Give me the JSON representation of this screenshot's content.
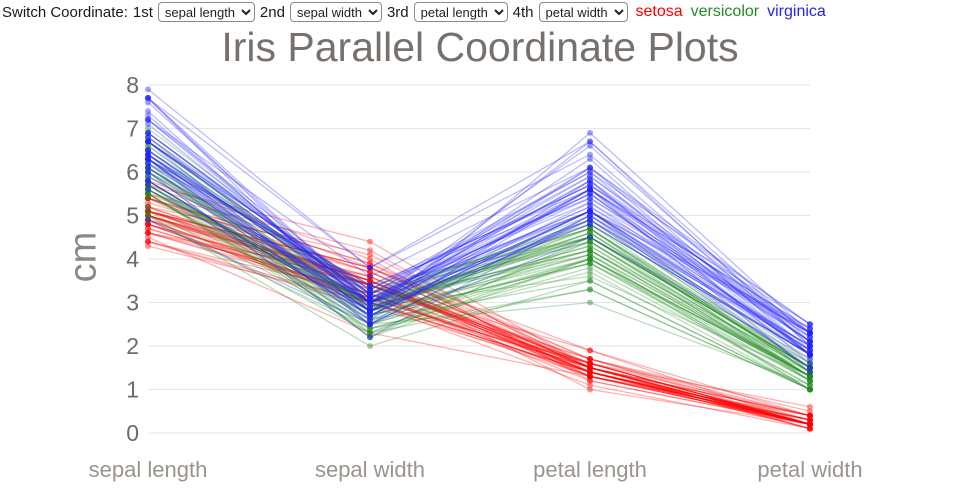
{
  "controls": {
    "label": "Switch Coordinate:",
    "selectors": [
      {
        "label": "1st",
        "value": "sepal length"
      },
      {
        "label": "2nd",
        "value": "sepal width"
      },
      {
        "label": "3rd",
        "value": "petal length"
      },
      {
        "label": "4th",
        "value": "petal width"
      }
    ]
  },
  "chart_data": {
    "type": "parallel-coordinates",
    "title": "Iris Parallel Coordinate Plots",
    "ylabel": "cm",
    "categories": [
      "sepal length",
      "sepal width",
      "petal length",
      "petal width"
    ],
    "yticks": [
      0,
      1,
      2,
      3,
      4,
      5,
      6,
      7,
      8
    ],
    "ylim": [
      0,
      8
    ],
    "grid": true,
    "legend_position": "top-right",
    "line_opacity": 0.3,
    "marker_opacity": 0.42,
    "series": [
      {
        "name": "setosa",
        "color": "#ff0000",
        "rows": [
          [
            5.1,
            3.5,
            1.4,
            0.2
          ],
          [
            4.9,
            3.0,
            1.4,
            0.2
          ],
          [
            4.7,
            3.2,
            1.3,
            0.2
          ],
          [
            4.6,
            3.1,
            1.5,
            0.2
          ],
          [
            5.0,
            3.6,
            1.4,
            0.2
          ],
          [
            5.4,
            3.9,
            1.7,
            0.4
          ],
          [
            4.6,
            3.4,
            1.4,
            0.3
          ],
          [
            5.0,
            3.4,
            1.5,
            0.2
          ],
          [
            4.4,
            2.9,
            1.4,
            0.2
          ],
          [
            4.9,
            3.1,
            1.5,
            0.1
          ],
          [
            5.4,
            3.7,
            1.5,
            0.2
          ],
          [
            4.8,
            3.4,
            1.6,
            0.2
          ],
          [
            4.8,
            3.0,
            1.4,
            0.1
          ],
          [
            4.3,
            3.0,
            1.1,
            0.1
          ],
          [
            5.8,
            4.0,
            1.2,
            0.2
          ],
          [
            5.7,
            4.4,
            1.5,
            0.4
          ],
          [
            5.4,
            3.9,
            1.3,
            0.4
          ],
          [
            5.1,
            3.5,
            1.4,
            0.3
          ],
          [
            5.7,
            3.8,
            1.7,
            0.3
          ],
          [
            5.1,
            3.8,
            1.5,
            0.3
          ],
          [
            5.4,
            3.4,
            1.7,
            0.2
          ],
          [
            5.1,
            3.7,
            1.5,
            0.4
          ],
          [
            4.6,
            3.6,
            1.0,
            0.2
          ],
          [
            5.1,
            3.3,
            1.7,
            0.5
          ],
          [
            4.8,
            3.4,
            1.9,
            0.2
          ],
          [
            5.0,
            3.0,
            1.6,
            0.2
          ],
          [
            5.0,
            3.4,
            1.6,
            0.4
          ],
          [
            5.2,
            3.5,
            1.5,
            0.2
          ],
          [
            5.2,
            3.4,
            1.4,
            0.2
          ],
          [
            4.7,
            3.2,
            1.6,
            0.2
          ],
          [
            4.8,
            3.1,
            1.6,
            0.2
          ],
          [
            5.4,
            3.4,
            1.5,
            0.4
          ],
          [
            5.2,
            4.1,
            1.5,
            0.1
          ],
          [
            5.5,
            4.2,
            1.4,
            0.2
          ],
          [
            4.9,
            3.1,
            1.5,
            0.2
          ],
          [
            5.0,
            3.2,
            1.2,
            0.2
          ],
          [
            5.5,
            3.5,
            1.3,
            0.2
          ],
          [
            4.9,
            3.6,
            1.4,
            0.1
          ],
          [
            4.4,
            3.0,
            1.3,
            0.2
          ],
          [
            5.1,
            3.4,
            1.5,
            0.2
          ],
          [
            5.0,
            3.5,
            1.3,
            0.3
          ],
          [
            4.5,
            2.3,
            1.3,
            0.3
          ],
          [
            4.4,
            3.2,
            1.3,
            0.2
          ],
          [
            5.0,
            3.5,
            1.6,
            0.6
          ],
          [
            5.1,
            3.8,
            1.9,
            0.4
          ],
          [
            4.8,
            3.0,
            1.4,
            0.3
          ],
          [
            5.1,
            3.8,
            1.6,
            0.2
          ],
          [
            4.6,
            3.2,
            1.4,
            0.2
          ],
          [
            5.3,
            3.7,
            1.5,
            0.2
          ],
          [
            5.0,
            3.3,
            1.4,
            0.2
          ]
        ]
      },
      {
        "name": "versicolor",
        "color": "#228b22",
        "rows": [
          [
            7.0,
            3.2,
            4.7,
            1.4
          ],
          [
            6.4,
            3.2,
            4.5,
            1.5
          ],
          [
            6.9,
            3.1,
            4.9,
            1.5
          ],
          [
            5.5,
            2.3,
            4.0,
            1.3
          ],
          [
            6.5,
            2.8,
            4.6,
            1.5
          ],
          [
            5.7,
            2.8,
            4.5,
            1.3
          ],
          [
            6.3,
            3.3,
            4.7,
            1.6
          ],
          [
            4.9,
            2.4,
            3.3,
            1.0
          ],
          [
            6.6,
            2.9,
            4.6,
            1.3
          ],
          [
            5.2,
            2.7,
            3.9,
            1.4
          ],
          [
            5.0,
            2.0,
            3.5,
            1.0
          ],
          [
            5.9,
            3.0,
            4.2,
            1.5
          ],
          [
            6.0,
            2.2,
            4.0,
            1.0
          ],
          [
            6.1,
            2.9,
            4.7,
            1.4
          ],
          [
            5.6,
            2.9,
            3.6,
            1.3
          ],
          [
            6.7,
            3.1,
            4.4,
            1.4
          ],
          [
            5.6,
            3.0,
            4.5,
            1.5
          ],
          [
            5.8,
            2.7,
            4.1,
            1.0
          ],
          [
            6.2,
            2.2,
            4.5,
            1.5
          ],
          [
            5.6,
            2.5,
            3.9,
            1.1
          ],
          [
            5.9,
            3.2,
            4.8,
            1.8
          ],
          [
            6.1,
            2.8,
            4.0,
            1.3
          ],
          [
            6.3,
            2.5,
            4.9,
            1.5
          ],
          [
            6.1,
            2.8,
            4.7,
            1.2
          ],
          [
            6.4,
            2.9,
            4.3,
            1.3
          ],
          [
            6.6,
            3.0,
            4.4,
            1.4
          ],
          [
            6.8,
            2.8,
            4.8,
            1.4
          ],
          [
            6.7,
            3.0,
            5.0,
            1.7
          ],
          [
            6.0,
            2.9,
            4.5,
            1.5
          ],
          [
            5.7,
            2.6,
            3.5,
            1.0
          ],
          [
            5.5,
            2.4,
            3.8,
            1.1
          ],
          [
            5.5,
            2.4,
            3.7,
            1.0
          ],
          [
            5.8,
            2.7,
            3.9,
            1.2
          ],
          [
            6.0,
            2.7,
            5.1,
            1.6
          ],
          [
            5.4,
            3.0,
            4.5,
            1.5
          ],
          [
            6.0,
            3.4,
            4.5,
            1.6
          ],
          [
            6.7,
            3.1,
            4.7,
            1.5
          ],
          [
            6.3,
            2.3,
            4.4,
            1.3
          ],
          [
            5.6,
            3.0,
            4.1,
            1.3
          ],
          [
            5.5,
            2.5,
            4.0,
            1.3
          ],
          [
            5.5,
            2.6,
            4.4,
            1.2
          ],
          [
            6.1,
            3.0,
            4.6,
            1.4
          ],
          [
            5.8,
            2.6,
            4.0,
            1.2
          ],
          [
            5.0,
            2.3,
            3.3,
            1.0
          ],
          [
            5.6,
            2.7,
            4.2,
            1.3
          ],
          [
            5.7,
            3.0,
            4.2,
            1.2
          ],
          [
            5.7,
            2.9,
            4.2,
            1.3
          ],
          [
            6.2,
            2.9,
            4.3,
            1.3
          ],
          [
            5.1,
            2.5,
            3.0,
            1.1
          ],
          [
            5.7,
            2.8,
            4.1,
            1.3
          ]
        ]
      },
      {
        "name": "virginica",
        "color": "#2222ff",
        "rows": [
          [
            6.3,
            3.3,
            6.0,
            2.5
          ],
          [
            5.8,
            2.7,
            5.1,
            1.9
          ],
          [
            7.1,
            3.0,
            5.9,
            2.1
          ],
          [
            6.3,
            2.9,
            5.6,
            1.8
          ],
          [
            6.5,
            3.0,
            5.8,
            2.2
          ],
          [
            7.6,
            3.0,
            6.6,
            2.1
          ],
          [
            4.9,
            2.5,
            4.5,
            1.7
          ],
          [
            7.3,
            2.9,
            6.3,
            1.8
          ],
          [
            6.7,
            2.5,
            5.8,
            1.8
          ],
          [
            7.2,
            3.6,
            6.1,
            2.5
          ],
          [
            6.5,
            3.2,
            5.1,
            2.0
          ],
          [
            6.4,
            2.7,
            5.3,
            1.9
          ],
          [
            6.8,
            3.0,
            5.5,
            2.1
          ],
          [
            5.7,
            2.5,
            5.0,
            2.0
          ],
          [
            5.8,
            2.8,
            5.1,
            2.4
          ],
          [
            6.4,
            3.2,
            5.3,
            2.3
          ],
          [
            6.5,
            3.0,
            5.5,
            1.8
          ],
          [
            7.7,
            3.8,
            6.7,
            2.2
          ],
          [
            7.7,
            2.6,
            6.9,
            2.3
          ],
          [
            6.0,
            2.2,
            5.0,
            1.5
          ],
          [
            6.9,
            3.2,
            5.7,
            2.3
          ],
          [
            5.6,
            2.8,
            4.9,
            2.0
          ],
          [
            7.7,
            2.8,
            6.7,
            2.0
          ],
          [
            6.3,
            2.7,
            4.9,
            1.8
          ],
          [
            6.7,
            3.3,
            5.7,
            2.1
          ],
          [
            7.2,
            3.2,
            6.0,
            1.8
          ],
          [
            6.2,
            2.8,
            4.8,
            1.8
          ],
          [
            6.1,
            3.0,
            4.9,
            1.8
          ],
          [
            6.4,
            2.8,
            5.6,
            2.1
          ],
          [
            7.2,
            3.0,
            5.8,
            1.6
          ],
          [
            7.4,
            2.8,
            6.1,
            1.9
          ],
          [
            7.9,
            3.8,
            6.4,
            2.0
          ],
          [
            6.4,
            2.8,
            5.6,
            2.2
          ],
          [
            6.3,
            2.8,
            5.1,
            1.5
          ],
          [
            6.1,
            2.6,
            5.6,
            1.4
          ],
          [
            7.7,
            3.0,
            6.1,
            2.3
          ],
          [
            6.3,
            3.4,
            5.6,
            2.4
          ],
          [
            6.4,
            3.1,
            5.5,
            1.8
          ],
          [
            6.0,
            3.0,
            4.8,
            1.8
          ],
          [
            6.9,
            3.1,
            5.4,
            2.1
          ],
          [
            6.7,
            3.1,
            5.6,
            2.4
          ],
          [
            6.9,
            3.1,
            5.1,
            2.3
          ],
          [
            5.8,
            2.7,
            5.1,
            1.9
          ],
          [
            6.8,
            3.2,
            5.9,
            2.3
          ],
          [
            6.7,
            3.3,
            5.7,
            2.5
          ],
          [
            6.7,
            3.0,
            5.2,
            2.3
          ],
          [
            6.3,
            2.5,
            5.0,
            1.9
          ],
          [
            6.5,
            3.0,
            5.2,
            2.0
          ],
          [
            6.2,
            3.4,
            5.4,
            2.3
          ],
          [
            5.9,
            3.0,
            5.1,
            1.8
          ]
        ]
      }
    ]
  }
}
